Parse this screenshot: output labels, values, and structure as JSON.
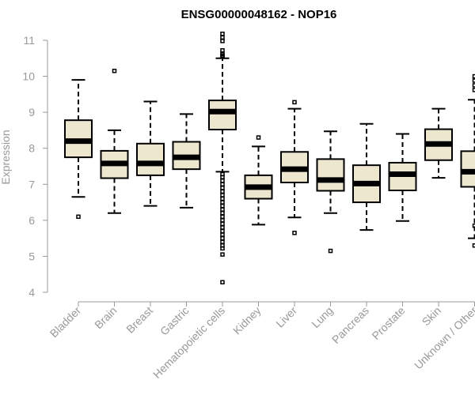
{
  "chart_data": {
    "type": "boxplot",
    "title": "ENSG00000048162 - NOP16",
    "xlabel": "",
    "ylabel": "Expression",
    "ylim": [
      4,
      11
    ],
    "yticks": [
      "4",
      "5",
      "6",
      "7",
      "8",
      "9",
      "10",
      "11"
    ],
    "box_color": "#ede7cf",
    "categories": [
      "Bladder",
      "Brain",
      "Breast",
      "Gastric",
      "Hematopoietic cells",
      "Kidney",
      "Liver",
      "Lung",
      "Pancreas",
      "Prostate",
      "Skin",
      "Unknown / Other"
    ],
    "boxes": [
      {
        "q1": 7.75,
        "median": 8.2,
        "q3": 8.78,
        "whisker_low": 6.65,
        "whisker_high": 9.9,
        "outliers": [
          6.1
        ]
      },
      {
        "q1": 7.17,
        "median": 7.58,
        "q3": 7.93,
        "whisker_low": 6.2,
        "whisker_high": 8.5,
        "outliers": [
          10.15
        ]
      },
      {
        "q1": 7.25,
        "median": 7.58,
        "q3": 8.13,
        "whisker_low": 6.4,
        "whisker_high": 9.3,
        "outliers": []
      },
      {
        "q1": 7.42,
        "median": 7.75,
        "q3": 8.18,
        "whisker_low": 6.35,
        "whisker_high": 8.95,
        "outliers": []
      },
      {
        "q1": 8.52,
        "median": 9.02,
        "q3": 9.33,
        "whisker_low": 7.35,
        "whisker_high": 10.5,
        "outliers": [
          11.18,
          11.08,
          10.98,
          10.72,
          10.62,
          10.58,
          10.55,
          7.28,
          7.2,
          7.1,
          7.0,
          6.9,
          6.8,
          6.7,
          6.6,
          6.5,
          6.4,
          6.3,
          6.2,
          6.1,
          6.0,
          5.9,
          5.8,
          5.7,
          5.6,
          5.5,
          5.4,
          5.3,
          5.22,
          5.05,
          4.28
        ]
      },
      {
        "q1": 6.6,
        "median": 6.92,
        "q3": 7.25,
        "whisker_low": 5.88,
        "whisker_high": 8.05,
        "outliers": [
          8.3
        ]
      },
      {
        "q1": 7.05,
        "median": 7.42,
        "q3": 7.9,
        "whisker_low": 6.08,
        "whisker_high": 9.1,
        "outliers": [
          9.28,
          5.65
        ]
      },
      {
        "q1": 6.82,
        "median": 7.12,
        "q3": 7.7,
        "whisker_low": 6.2,
        "whisker_high": 8.47,
        "outliers": [
          5.15
        ]
      },
      {
        "q1": 6.5,
        "median": 7.02,
        "q3": 7.53,
        "whisker_low": 5.73,
        "whisker_high": 8.68,
        "outliers": []
      },
      {
        "q1": 6.83,
        "median": 7.28,
        "q3": 7.6,
        "whisker_low": 5.98,
        "whisker_high": 8.4,
        "outliers": []
      },
      {
        "q1": 7.67,
        "median": 8.12,
        "q3": 8.53,
        "whisker_low": 7.18,
        "whisker_high": 9.1,
        "outliers": []
      },
      {
        "q1": 6.93,
        "median": 7.35,
        "q3": 7.92,
        "whisker_low": 5.5,
        "whisker_high": 9.35,
        "outliers": [
          10.0,
          9.88,
          9.75,
          9.62,
          5.85,
          5.3
        ]
      }
    ]
  }
}
